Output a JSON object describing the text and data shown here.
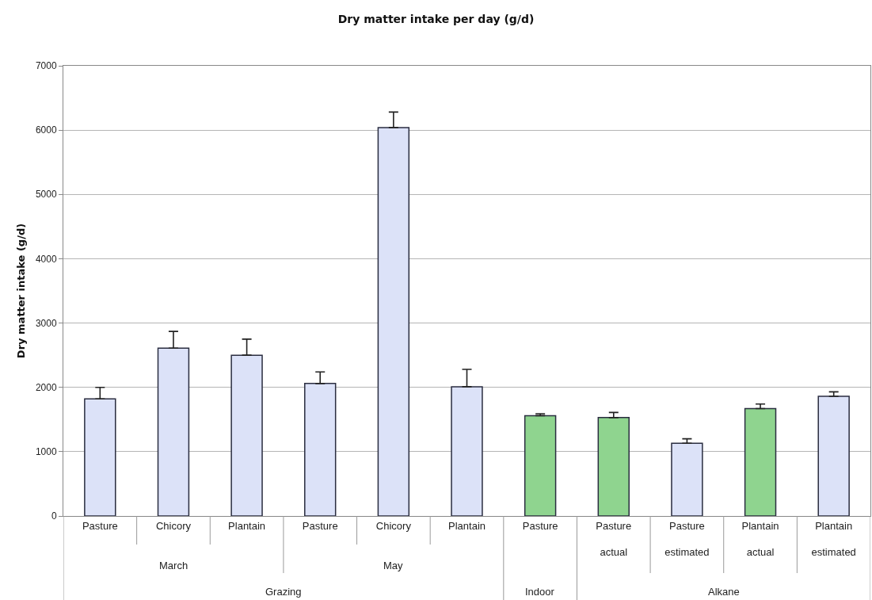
{
  "chart_data": {
    "type": "bar",
    "title": "Dry matter intake per day (g/d)",
    "ylabel": "Dry matter intake (g/d)",
    "categories": [
      "Pasture",
      "Chicory",
      "Plantain",
      "Pasture",
      "Chicory",
      "Plantain",
      "Pasture",
      "Pasture\nactual",
      "Pasture\nestimated",
      "Plantain\nactual",
      "Plantain\nestimated"
    ],
    "values": [
      1820,
      2610,
      2500,
      2060,
      6040,
      2010,
      1560,
      1530,
      1130,
      1670,
      1860
    ],
    "colors": [
      "#dce2f8",
      "#dce2f8",
      "#dce2f8",
      "#dce2f8",
      "#dce2f8",
      "#dce2f8",
      "#8fd48f",
      "#8fd48f",
      "#dce2f8",
      "#8fd48f",
      "#dce2f8"
    ],
    "errors": [
      [
        1820,
        2000
      ],
      [
        2610,
        2870
      ],
      [
        2500,
        2750
      ],
      [
        2060,
        2240
      ],
      [
        6040,
        6280
      ],
      [
        2010,
        2280
      ],
      [
        1560,
        1590
      ],
      [
        1530,
        1610
      ],
      [
        1130,
        1200
      ],
      [
        1670,
        1740
      ],
      [
        1860,
        1930
      ]
    ],
    "annotations": [
      "March",
      "May",
      "Grazing",
      "Indoor",
      "Alkane"
    ],
    "ylim": [
      0,
      7000
    ],
    "yticks": [
      0,
      1000,
      2000,
      3000,
      4000,
      5000,
      6000,
      7000
    ],
    "grid": "y"
  }
}
